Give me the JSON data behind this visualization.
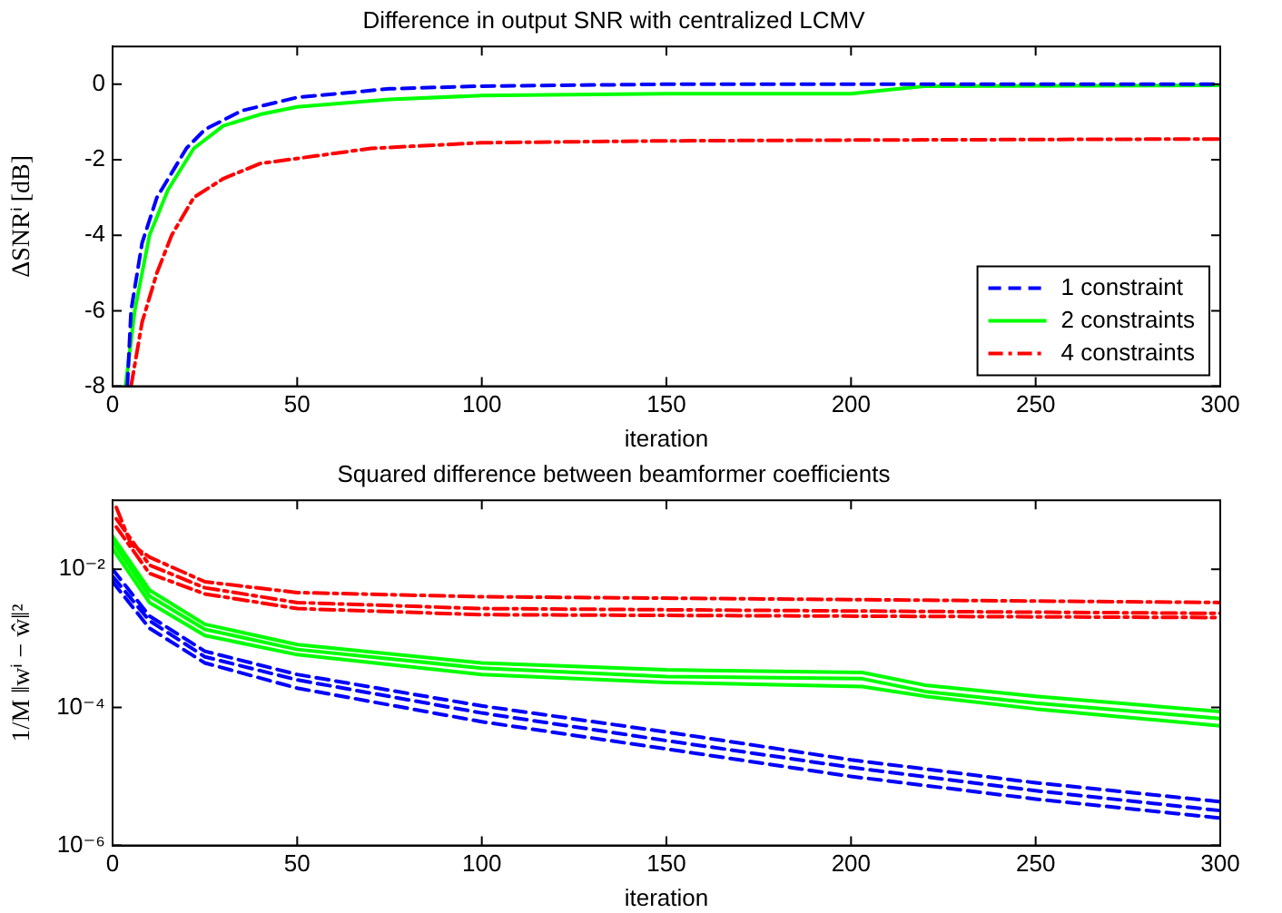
{
  "chart_data": [
    {
      "type": "line",
      "title": "Difference in output SNR with centralized LCMV",
      "xlabel": "iteration",
      "ylabel": "ΔSNRⁱ [dB]",
      "xlim": [
        0,
        300
      ],
      "xticks": [
        0,
        50,
        100,
        150,
        200,
        250,
        300
      ],
      "ylim": [
        -8,
        1
      ],
      "yticks": [
        -8,
        -6,
        -4,
        -2,
        0
      ],
      "grid": false,
      "legend": "bottom right",
      "marker": "none",
      "series": [
        {
          "name": "1 constraint",
          "color": "#0000ff",
          "line_style": "dashed",
          "x": [
            4,
            5,
            8,
            12,
            20,
            25,
            35,
            50,
            75,
            100,
            150,
            300
          ],
          "values": [
            -8,
            -6,
            -4.2,
            -3,
            -1.7,
            -1.2,
            -0.7,
            -0.35,
            -0.12,
            -0.05,
            0,
            0
          ]
        },
        {
          "name": "2 constraints",
          "color": "#00ff00",
          "line_style": "solid",
          "x": [
            3.5,
            6,
            10,
            15,
            22,
            30,
            40,
            50,
            75,
            100,
            150,
            200,
            210,
            220,
            300
          ],
          "values": [
            -8,
            -6,
            -4,
            -2.8,
            -1.7,
            -1.1,
            -0.8,
            -0.6,
            -0.4,
            -0.3,
            -0.25,
            -0.25,
            -0.15,
            -0.05,
            -0.03
          ]
        },
        {
          "name": "4 constraints",
          "color": "#ff0000",
          "line_style": "dashdot",
          "x": [
            5,
            8,
            12,
            16,
            22,
            30,
            40,
            55,
            70,
            100,
            150,
            200,
            300
          ],
          "values": [
            -8,
            -6.3,
            -5,
            -4,
            -3,
            -2.5,
            -2.1,
            -1.9,
            -1.7,
            -1.55,
            -1.5,
            -1.48,
            -1.45
          ]
        }
      ]
    },
    {
      "type": "line",
      "title": "Squared difference between beamformer coefficients",
      "xlabel": "iteration",
      "ylabel": "1/M ‖wⁱ − ŵ‖²",
      "xlim": [
        0,
        300
      ],
      "xticks": [
        0,
        50,
        100,
        150,
        200,
        250,
        300
      ],
      "ylim": [
        1e-06,
        0.1
      ],
      "yticks": [
        {
          "value": 1e-06,
          "label": "10⁻⁶"
        },
        {
          "value": 0.0001,
          "label": "10⁻⁴"
        },
        {
          "value": 0.01,
          "label": "10⁻²"
        }
      ],
      "log": "y",
      "grid": false,
      "legend": false,
      "marker": "none",
      "series": [
        {
          "color": "#ff0000",
          "line_style": "dashdot",
          "x": [
            1,
            5,
            10,
            25,
            50,
            100,
            300
          ],
          "values": [
            0.079,
            0.023,
            0.015,
            0.0066,
            0.0046,
            0.004,
            0.0033
          ]
        },
        {
          "color": "#ff0000",
          "line_style": "dashdot",
          "x": [
            1,
            10,
            25,
            50,
            100,
            300
          ],
          "values": [
            0.054,
            0.0115,
            0.0054,
            0.0033,
            0.0027,
            0.0023
          ]
        },
        {
          "color": "#ff0000",
          "line_style": "dashdot",
          "x": [
            1,
            10,
            25,
            50,
            100,
            300
          ],
          "values": [
            0.041,
            0.0087,
            0.0044,
            0.0027,
            0.0022,
            0.002
          ]
        },
        {
          "color": "#00ff00",
          "line_style": "solid",
          "x": [
            0,
            10,
            25,
            50,
            100,
            150,
            203,
            220,
            250,
            300
          ],
          "values": [
            0.03,
            0.005,
            0.0016,
            0.00081,
            0.00044,
            0.00035,
            0.00032,
            0.00021,
            0.000145,
            8.7e-05
          ]
        },
        {
          "color": "#00ff00",
          "line_style": "solid",
          "x": [
            0,
            10,
            25,
            50,
            100,
            150,
            203,
            220,
            250,
            300
          ],
          "values": [
            0.025,
            0.0041,
            0.00135,
            0.00069,
            0.00037,
            0.00028,
            0.00026,
            0.00017,
            0.000115,
            6.9e-05
          ]
        },
        {
          "color": "#00ff00",
          "line_style": "solid",
          "x": [
            0,
            10,
            25,
            50,
            100,
            150,
            203,
            220,
            250,
            300
          ],
          "values": [
            0.02,
            0.0033,
            0.0011,
            0.00058,
            0.0003,
            0.00023,
            0.0002,
            0.000145,
            9.5e-05,
            5.4e-05
          ]
        },
        {
          "color": "#0000ff",
          "line_style": "dashed",
          "x": [
            0,
            10,
            25,
            50,
            100,
            150,
            200,
            250,
            300
          ],
          "values": [
            0.01,
            0.0021,
            0.00065,
            0.0003,
            0.000105,
            4.4e-05,
            1.74e-05,
            8.1e-06,
            4.3e-06
          ]
        },
        {
          "color": "#0000ff",
          "line_style": "dashed",
          "x": [
            0,
            10,
            25,
            50,
            100,
            150,
            200,
            250,
            300
          ],
          "values": [
            0.0079,
            0.0018,
            0.00054,
            0.00025,
            8.3e-05,
            3.3e-05,
            1.35e-05,
            6.2e-06,
            3.2e-06
          ]
        },
        {
          "color": "#0000ff",
          "line_style": "dashed",
          "x": [
            0,
            10,
            25,
            50,
            100,
            150,
            200,
            250,
            300
          ],
          "values": [
            0.0066,
            0.0014,
            0.00044,
            0.00019,
            6.2e-05,
            2.5e-05,
            1e-05,
            4.7e-06,
            2.5e-06
          ]
        }
      ]
    }
  ]
}
